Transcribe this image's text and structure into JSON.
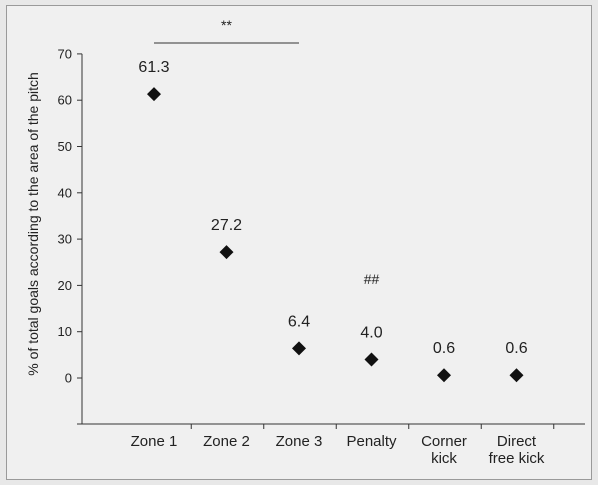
{
  "chart_data": {
    "type": "scatter",
    "categories": [
      "Zone 1",
      "Zone 2",
      "Zone 3",
      "Penalty",
      "Corner kick",
      "Direct free kick"
    ],
    "category_lines": [
      [
        "Zone 1"
      ],
      [
        "Zone 2"
      ],
      [
        "Zone 3"
      ],
      [
        "Penalty"
      ],
      [
        "Corner",
        "kick"
      ],
      [
        "Direct",
        "free kick"
      ]
    ],
    "values": [
      61.3,
      27.2,
      6.4,
      4.0,
      0.6,
      0.6
    ],
    "data_labels": [
      "61.3",
      "27.2",
      "6.4",
      "4.0",
      "0.6",
      "0.6"
    ],
    "ylabel": "% of total goals according to the area of the pitch",
    "ylim": [
      -10,
      70
    ],
    "yticks": [
      0,
      10,
      20,
      30,
      40,
      50,
      60,
      70
    ],
    "marker": "diamond",
    "marker_color": "#111111",
    "grid": false,
    "annotations": [
      {
        "text": "**",
        "type": "significance-bracket",
        "from": "Zone 1",
        "to": "Zone 3"
      },
      {
        "text": "##",
        "type": "significance-mark",
        "at": "Penalty"
      }
    ]
  }
}
